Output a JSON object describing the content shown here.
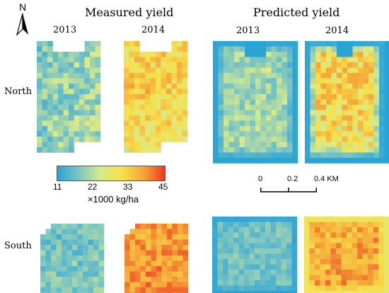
{
  "north_arrow": {
    "label": "N",
    "icon": "north-arrow-icon"
  },
  "headings": {
    "measured": "Measured yield",
    "predicted": "Predicted yield"
  },
  "years": {
    "measured_2013": "2013",
    "measured_2014": "2014",
    "predicted_2013": "2013",
    "predicted_2014": "2014"
  },
  "regions": {
    "north": "North",
    "south": "South"
  },
  "legend": {
    "ticks": [
      "11",
      "22",
      "33",
      "45"
    ],
    "unit": "×1000 kg/ha",
    "range": [
      11,
      45
    ],
    "colors": [
      "#2aa3d6",
      "#7cc5c3",
      "#d8ea8a",
      "#f7e04a",
      "#f5a73a",
      "#ea3a1f"
    ]
  },
  "scale_bar": {
    "ticks": [
      "0",
      "0.2",
      "0.4 KM"
    ]
  },
  "maps": {
    "north_measured_2013": {
      "mean_yield": 21,
      "range": [
        11,
        30
      ]
    },
    "north_measured_2014": {
      "mean_yield": 31,
      "range": [
        22,
        42
      ]
    },
    "north_predicted_2013": {
      "mean_yield": 20,
      "range": [
        11,
        26
      ]
    },
    "north_predicted_2014": {
      "mean_yield": 30,
      "range": [
        11,
        38
      ]
    },
    "south_measured_2013": {
      "mean_yield": 19,
      "range": [
        12,
        26
      ]
    },
    "south_measured_2014": {
      "mean_yield": 39,
      "range": [
        30,
        45
      ]
    },
    "south_predicted_2013": {
      "mean_yield": 17,
      "range": [
        11,
        22
      ]
    },
    "south_predicted_2014": {
      "mean_yield": 37,
      "range": [
        28,
        44
      ]
    }
  }
}
